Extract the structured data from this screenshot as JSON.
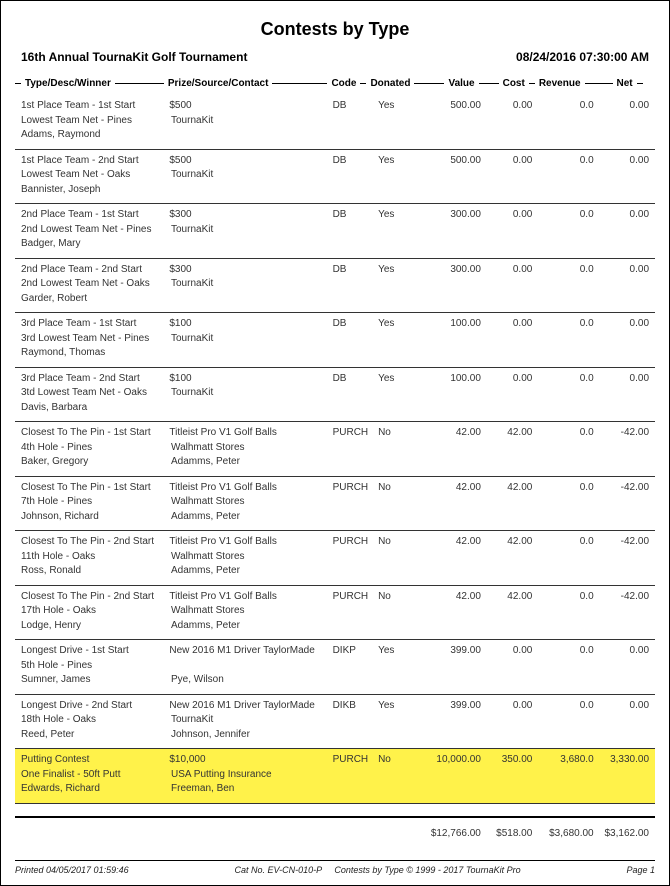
{
  "report": {
    "title": "Contests by Type",
    "event": "16th Annual TournaKit Golf Tournament",
    "datetime": "08/24/2016 07:30:00 AM"
  },
  "headers": {
    "type": "Type/Desc/Winner",
    "prize": "Prize/Source/Contact",
    "code": "Code",
    "donated": "Donated",
    "value": "Value",
    "cost": "Cost",
    "revenue": "Revenue",
    "net": "Net"
  },
  "entries": [
    {
      "type": "1st Place Team - 1st Start",
      "desc": "Lowest Team Net - Pines",
      "winner": "Adams, Raymond",
      "prize": "$500",
      "source": "TournaKit",
      "contact": "",
      "code": "DB",
      "donated": "Yes",
      "value": "500.00",
      "cost": "0.00",
      "revenue": "0.0",
      "net": "0.00",
      "highlight": false
    },
    {
      "type": "1st Place Team - 2nd Start",
      "desc": "Lowest Team Net - Oaks",
      "winner": "Bannister, Joseph",
      "prize": "$500",
      "source": "TournaKit",
      "contact": "",
      "code": "DB",
      "donated": "Yes",
      "value": "500.00",
      "cost": "0.00",
      "revenue": "0.0",
      "net": "0.00",
      "highlight": false
    },
    {
      "type": "2nd Place Team - 1st Start",
      "desc": "2nd Lowest Team Net - Pines",
      "winner": "Badger, Mary",
      "prize": "$300",
      "source": "TournaKit",
      "contact": "",
      "code": "DB",
      "donated": "Yes",
      "value": "300.00",
      "cost": "0.00",
      "revenue": "0.0",
      "net": "0.00",
      "highlight": false
    },
    {
      "type": "2nd Place Team - 2nd Start",
      "desc": "2nd Lowest Team Net - Oaks",
      "winner": "Garder, Robert",
      "prize": "$300",
      "source": "TournaKit",
      "contact": "",
      "code": "DB",
      "donated": "Yes",
      "value": "300.00",
      "cost": "0.00",
      "revenue": "0.0",
      "net": "0.00",
      "highlight": false
    },
    {
      "type": "3rd Place Team - 1st Start",
      "desc": "3rd Lowest Team Net - Pines",
      "winner": "Raymond, Thomas",
      "prize": "$100",
      "source": "TournaKit",
      "contact": "",
      "code": "DB",
      "donated": "Yes",
      "value": "100.00",
      "cost": "0.00",
      "revenue": "0.0",
      "net": "0.00",
      "highlight": false
    },
    {
      "type": "3rd Place Team - 2nd Start",
      "desc": "3td Lowest Team Net - Oaks",
      "winner": "Davis, Barbara",
      "prize": "$100",
      "source": "TournaKit",
      "contact": "",
      "code": "DB",
      "donated": "Yes",
      "value": "100.00",
      "cost": "0.00",
      "revenue": "0.0",
      "net": "0.00",
      "highlight": false
    },
    {
      "type": "Closest To The Pin - 1st Start",
      "desc": "4th Hole - Pines",
      "winner": "Baker, Gregory",
      "prize": "Titleist Pro V1 Golf Balls",
      "source": "Walhmatt Stores",
      "contact": "Adamms, Peter",
      "code": "PURCH",
      "donated": "No",
      "value": "42.00",
      "cost": "42.00",
      "revenue": "0.0",
      "net": "-42.00",
      "highlight": false
    },
    {
      "type": "Closest To The Pin - 1st Start",
      "desc": "7th Hole - Pines",
      "winner": "Johnson, Richard",
      "prize": "Titleist Pro V1 Golf Balls",
      "source": "Walhmatt Stores",
      "contact": "Adamms, Peter",
      "code": "PURCH",
      "donated": "No",
      "value": "42.00",
      "cost": "42.00",
      "revenue": "0.0",
      "net": "-42.00",
      "highlight": false
    },
    {
      "type": "Closest To The Pin - 2nd Start",
      "desc": "11th Hole - Oaks",
      "winner": "Ross, Ronald",
      "prize": "Titleist Pro V1 Golf Balls",
      "source": "Walhmatt Stores",
      "contact": "Adamms, Peter",
      "code": "PURCH",
      "donated": "No",
      "value": "42.00",
      "cost": "42.00",
      "revenue": "0.0",
      "net": "-42.00",
      "highlight": false
    },
    {
      "type": "Closest To The Pin - 2nd Start",
      "desc": "17th Hole - Oaks",
      "winner": "Lodge, Henry",
      "prize": "Titleist Pro V1 Golf Balls",
      "source": "Walhmatt Stores",
      "contact": "Adamms, Peter",
      "code": "PURCH",
      "donated": "No",
      "value": "42.00",
      "cost": "42.00",
      "revenue": "0.0",
      "net": "-42.00",
      "highlight": false
    },
    {
      "type": "Longest Drive - 1st Start",
      "desc": "5th Hole - Pines",
      "winner": "Sumner, James",
      "prize": "New 2016 M1 Driver TaylorMade",
      "source": "",
      "contact": "Pye, Wilson",
      "code": "DIKP",
      "donated": "Yes",
      "value": "399.00",
      "cost": "0.00",
      "revenue": "0.0",
      "net": "0.00",
      "highlight": false
    },
    {
      "type": "Longest Drive - 2nd Start",
      "desc": "18th Hole - Oaks",
      "winner": "Reed, Peter",
      "prize": "New 2016 M1 Driver TaylorMade",
      "source": "TournaKit",
      "contact": "Johnson, Jennifer",
      "code": "DIKB",
      "donated": "Yes",
      "value": "399.00",
      "cost": "0.00",
      "revenue": "0.0",
      "net": "0.00",
      "highlight": false
    },
    {
      "type": "Putting Contest",
      "desc": "One Finalist - 50ft Putt",
      "winner": "Edwards, Richard",
      "prize": "$10,000",
      "source": "USA Putting Insurance",
      "contact": "Freeman, Ben",
      "code": "PURCH",
      "donated": "No",
      "value": "10,000.00",
      "cost": "350.00",
      "revenue": "3,680.0",
      "net": "3,330.00",
      "highlight": true
    }
  ],
  "totals": {
    "value": "$12,766.00",
    "cost": "$518.00",
    "revenue": "$3,680.00",
    "net": "$3,162.00"
  },
  "footer": {
    "printed": "Printed  04/05/2017 01:59:46",
    "catalog": "Cat No. EV-CN-010-P",
    "copyright": "Contests by Type © 1999 - 2017 TournaKit Pro",
    "page": "Page 1"
  },
  "style": {
    "highlight_color": "#fff24a",
    "border_color": "#000000",
    "text_color": "#333333"
  }
}
